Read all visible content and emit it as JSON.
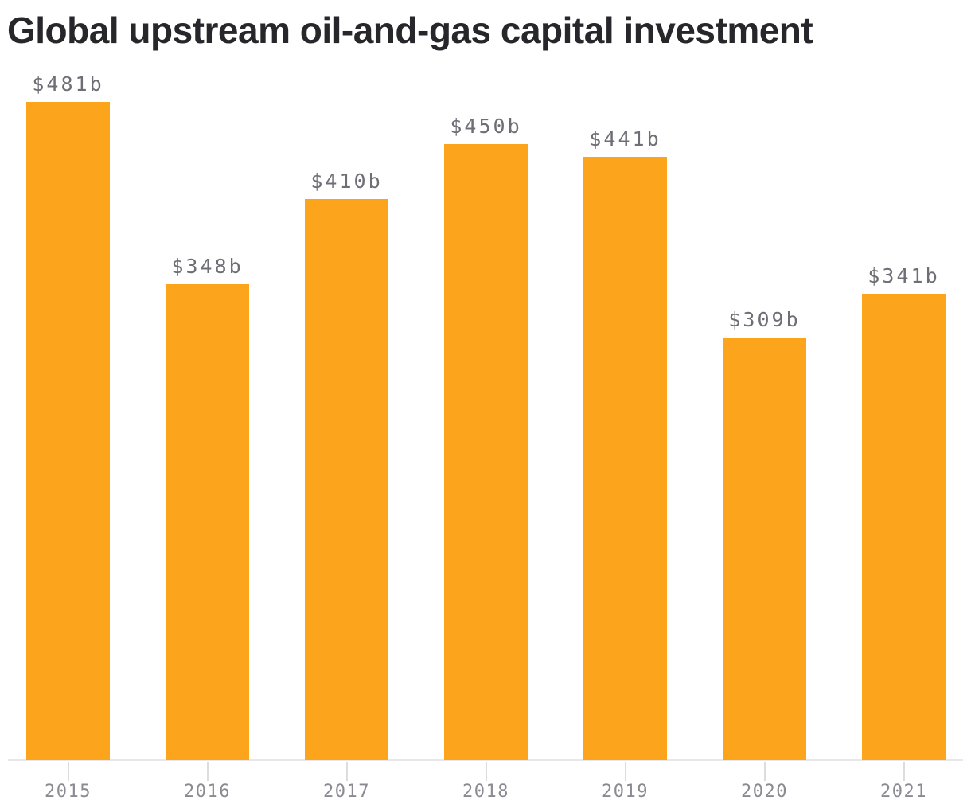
{
  "page": {
    "title": "Global upstream oil-and-gas capital investment",
    "background": "#FFFFFF"
  },
  "chart_data": {
    "type": "bar",
    "title": "Global upstream oil-and-gas capital investment",
    "categories": [
      "2015",
      "2016",
      "2017",
      "2018",
      "2019",
      "2020",
      "2021"
    ],
    "values": [
      481,
      348,
      410,
      450,
      441,
      309,
      341
    ],
    "value_labels": [
      "$481b",
      "$348b",
      "$410b",
      "$450b",
      "$441b",
      "$309b",
      "$341b"
    ],
    "value_prefix": "$",
    "value_suffix": "b",
    "xlabel": "",
    "ylabel": "",
    "ylim": [
      0,
      481
    ],
    "grid": false,
    "legend": false,
    "legend_position": "none",
    "colors": {
      "bar": "#FBA41C",
      "title": "#26262B",
      "value_label": "#6E6E76",
      "axis_label": "#8A8A93",
      "axis_line": "#E8E8EA",
      "tick": "#DCDCE1",
      "background": "#FFFFFF"
    }
  }
}
